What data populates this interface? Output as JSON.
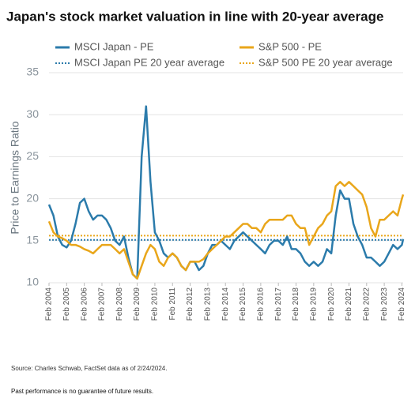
{
  "chart_data": {
    "type": "line",
    "title": "Japan's stock market valuation in line with 20-year average",
    "y_label": "Price to Earnings Ratio",
    "source": "Source: Charles Schwab, FactSet data as of 2/24/2024.",
    "note": "Past performance is no guarantee of future results.",
    "x": [
      2004.08,
      2004.33,
      2004.58,
      2004.83,
      2005.08,
      2005.33,
      2005.58,
      2005.83,
      2006.08,
      2006.33,
      2006.58,
      2006.83,
      2007.08,
      2007.33,
      2007.58,
      2007.83,
      2008.08,
      2008.33,
      2008.58,
      2008.83,
      2009.08,
      2009.33,
      2009.58,
      2009.83,
      2010.08,
      2010.33,
      2010.58,
      2010.83,
      2011.08,
      2011.33,
      2011.58,
      2011.83,
      2012.08,
      2012.33,
      2012.58,
      2012.83,
      2013.08,
      2013.33,
      2013.58,
      2013.83,
      2014.08,
      2014.33,
      2014.58,
      2014.83,
      2015.08,
      2015.33,
      2015.58,
      2015.83,
      2016.08,
      2016.33,
      2016.58,
      2016.83,
      2017.08,
      2017.33,
      2017.58,
      2017.83,
      2018.08,
      2018.33,
      2018.58,
      2018.83,
      2019.08,
      2019.33,
      2019.58,
      2019.83,
      2020.08,
      2020.33,
      2020.58,
      2020.83,
      2021.08,
      2021.33,
      2021.58,
      2021.83,
      2022.08,
      2022.33,
      2022.58,
      2022.83,
      2023.08,
      2023.33,
      2023.58,
      2023.83,
      2024.08,
      2024.15
    ],
    "series": [
      {
        "name": "MSCI Japan - PE",
        "color": "#2b7bab",
        "values": [
          19.3,
          18,
          15.5,
          14.5,
          14.2,
          15,
          17,
          19.5,
          20,
          18.5,
          17.5,
          18,
          18,
          17.5,
          16.5,
          15,
          14.5,
          15.5,
          13,
          11,
          10.5,
          25,
          31,
          22,
          16,
          15,
          13.5,
          13,
          13.5,
          13,
          12,
          11.5,
          12.5,
          12.5,
          11.5,
          12,
          13.5,
          14.5,
          14.5,
          15,
          14.5,
          14,
          15,
          15.5,
          16,
          15.5,
          15,
          14.5,
          14,
          13.5,
          14.5,
          15,
          15,
          14.5,
          15.5,
          14,
          14,
          13.5,
          12.5,
          12,
          12.5,
          12,
          12.5,
          14,
          13.5,
          18,
          21,
          20,
          20,
          17,
          15.5,
          14.5,
          13,
          13,
          12.5,
          12,
          12.5,
          13.5,
          14.5,
          14,
          14.5,
          15.2
        ]
      },
      {
        "name": "S&P 500 - PE",
        "color": "#e9a61a",
        "values": [
          17.3,
          16,
          15.5,
          15.3,
          15,
          14.5,
          14.5,
          14.3,
          14,
          13.8,
          13.5,
          14,
          14.5,
          14.5,
          14.5,
          14,
          13.5,
          14,
          12.5,
          11,
          10.5,
          12,
          13.5,
          14.5,
          14,
          12.5,
          12,
          13,
          13.5,
          13,
          12,
          11.5,
          12.5,
          12.5,
          12.5,
          12.8,
          13.5,
          14,
          14.5,
          15,
          15.5,
          15.5,
          16,
          16.5,
          17,
          17,
          16.5,
          16.5,
          16,
          17,
          17.5,
          17.5,
          17.5,
          17.5,
          18,
          18,
          17,
          16.5,
          16.5,
          14.5,
          15.5,
          16.5,
          17,
          18,
          18.5,
          21.5,
          22,
          21.5,
          22,
          21.5,
          21,
          20.5,
          19,
          16.5,
          15.5,
          17.5,
          17.5,
          18,
          18.5,
          18,
          20,
          20.5
        ]
      }
    ],
    "hlines": [
      {
        "name": "MSCI Japan PE 20 year average",
        "color": "#2b7bab",
        "value": 15.1
      },
      {
        "name": "S&P 500 PE 20 year average",
        "color": "#e9a61a",
        "value": 15.6
      }
    ],
    "xlim": [
      2004.08,
      2024.15
    ],
    "xticks": [
      {
        "value": 2004.08,
        "label": "Feb 2004"
      },
      {
        "value": 2005.08,
        "label": "Feb 2005"
      },
      {
        "value": 2006.08,
        "label": "Feb 2006"
      },
      {
        "value": 2007.08,
        "label": "Feb 2007"
      },
      {
        "value": 2008.08,
        "label": "Feb 2008"
      },
      {
        "value": 2009.08,
        "label": "Feb 2009"
      },
      {
        "value": 2010.08,
        "label": "Feb 2010"
      },
      {
        "value": 2011.08,
        "label": "Feb 2011"
      },
      {
        "value": 2012.08,
        "label": "Feb 2012"
      },
      {
        "value": 2013.08,
        "label": "Feb 2013"
      },
      {
        "value": 2014.08,
        "label": "Feb 2014"
      },
      {
        "value": 2015.08,
        "label": "Feb 2015"
      },
      {
        "value": 2016.08,
        "label": "Feb 2016"
      },
      {
        "value": 2017.08,
        "label": "Feb 2017"
      },
      {
        "value": 2018.08,
        "label": "Feb 2018"
      },
      {
        "value": 2019.08,
        "label": "Feb 2019"
      },
      {
        "value": 2020.08,
        "label": "Feb 2020"
      },
      {
        "value": 2021.08,
        "label": "Feb 2021"
      },
      {
        "value": 2022.08,
        "label": "Feb 2022"
      },
      {
        "value": 2023.08,
        "label": "Feb 2023"
      },
      {
        "value": 2024.08,
        "label": "Feb 2024"
      }
    ],
    "ylim": [
      10,
      35
    ],
    "yticks": [
      10,
      15,
      20,
      25,
      30,
      35
    ],
    "grid": true
  }
}
